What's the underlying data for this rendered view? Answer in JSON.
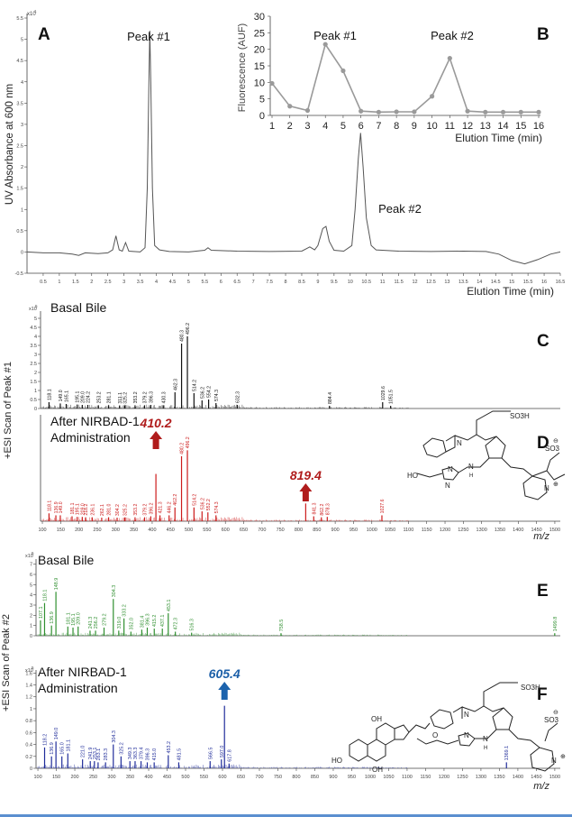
{
  "colors": {
    "trace": "#555555",
    "inset": "#9a9a9a",
    "c": "#111111",
    "d": "#cc1a1a",
    "e": "#2f8f2f",
    "f": "#1f2c9a",
    "red_arrow": "#b01c1c",
    "blue_arrow": "#1c63ad",
    "bottom_rule": "#5b8fd0",
    "blue_label": "#1b5fa8"
  },
  "chart_data": [
    {
      "type": "line",
      "panel": "A",
      "ylabel": "UV Absorbance at 600 nm",
      "xlabel": "Elution Time (min)",
      "y_scale_mark": "x10",
      "y_scale_exp": "1",
      "xlim": [
        0,
        16.5
      ],
      "ylim": [
        -0.5,
        5.5
      ],
      "xticks": [
        "0.5",
        "1",
        "1.5",
        "2",
        "2.5",
        "3",
        "3.5",
        "4",
        "4.5",
        "5",
        "5.5",
        "6",
        "6.5",
        "7",
        "7.5",
        "8",
        "8.5",
        "9",
        "9.5",
        "10",
        "10.5",
        "11",
        "11.5",
        "12",
        "12.5",
        "13",
        "13.5",
        "14",
        "14.5",
        "15",
        "15.5",
        "16",
        "16.5"
      ],
      "yticks": [
        "-0.5",
        "0",
        "0.5",
        "1",
        "1.5",
        "2",
        "2.5",
        "3",
        "3.5",
        "4",
        "4.5",
        "5",
        "5.5"
      ],
      "peak_labels": [
        "Peak #1",
        "Peak #2"
      ],
      "points": [
        [
          0,
          0
        ],
        [
          0.5,
          -0.02
        ],
        [
          1,
          -0.02
        ],
        [
          1.4,
          -0.05
        ],
        [
          1.6,
          -0.08
        ],
        [
          1.8,
          -0.02
        ],
        [
          2.2,
          -0.04
        ],
        [
          2.5,
          -0.02
        ],
        [
          2.65,
          0.05
        ],
        [
          2.75,
          0.38
        ],
        [
          2.85,
          0.05
        ],
        [
          2.95,
          0.02
        ],
        [
          3.05,
          0.22
        ],
        [
          3.15,
          0.02
        ],
        [
          3.5,
          0.0
        ],
        [
          3.65,
          0.1
        ],
        [
          3.72,
          1.5
        ],
        [
          3.77,
          4.0
        ],
        [
          3.8,
          5.2
        ],
        [
          3.83,
          4.0
        ],
        [
          3.88,
          1.5
        ],
        [
          3.95,
          0.15
        ],
        [
          4.1,
          0.05
        ],
        [
          4.4,
          0.01
        ],
        [
          5,
          0.0
        ],
        [
          5.5,
          0.04
        ],
        [
          5.6,
          0.1
        ],
        [
          5.7,
          0.04
        ],
        [
          6.5,
          0.02
        ],
        [
          7.5,
          0.01
        ],
        [
          8.5,
          0.02
        ],
        [
          8.75,
          0.12
        ],
        [
          8.9,
          0.05
        ],
        [
          9.0,
          0.15
        ],
        [
          9.15,
          0.55
        ],
        [
          9.25,
          0.6
        ],
        [
          9.35,
          0.25
        ],
        [
          9.5,
          0.04
        ],
        [
          9.8,
          0.02
        ],
        [
          10.05,
          0.15
        ],
        [
          10.15,
          1.0
        ],
        [
          10.25,
          2.2
        ],
        [
          10.32,
          2.8
        ],
        [
          10.4,
          2.0
        ],
        [
          10.5,
          0.8
        ],
        [
          10.65,
          0.15
        ],
        [
          10.8,
          0.05
        ],
        [
          11.5,
          0.02
        ],
        [
          12.5,
          0.01
        ],
        [
          13.5,
          0.02
        ],
        [
          14.2,
          0.01
        ],
        [
          14.6,
          -0.05
        ],
        [
          15.0,
          -0.2
        ],
        [
          15.4,
          -0.28
        ],
        [
          15.8,
          -0.18
        ],
        [
          16.2,
          -0.05
        ],
        [
          16.5,
          0.0
        ]
      ]
    },
    {
      "type": "line",
      "panel": "B",
      "ylabel": "Fluorescence (AUF)",
      "xlabel": "Elution Time (min)",
      "x": [
        1,
        2,
        3,
        4,
        5,
        6,
        7,
        8,
        9,
        10,
        11,
        12,
        13,
        14,
        15,
        16
      ],
      "y": [
        9.7,
        2.8,
        1.5,
        21.5,
        13.5,
        1.3,
        1.0,
        1.1,
        1.1,
        5.8,
        17.3,
        1.3,
        1.0,
        1.0,
        1.0,
        1.0
      ],
      "xlim": [
        1,
        16
      ],
      "ylim": [
        0,
        30
      ],
      "yticks": [
        "0",
        "5",
        "10",
        "15",
        "20",
        "25",
        "30"
      ],
      "peak_labels": [
        "Peak #1",
        "Peak #2"
      ]
    },
    {
      "type": "bar",
      "panel": "C",
      "title": "Basal Bile",
      "y_scale_mark": "x10",
      "y_scale_exp": "5",
      "xlim": [
        95,
        1510
      ],
      "ylim": [
        0,
        5.4
      ],
      "yticks": [
        "0",
        "0.5",
        "1",
        "1.5",
        "2",
        "2.5",
        "3",
        "3.5",
        "4",
        "4.5",
        "5"
      ],
      "peaks": [
        {
          "mz": 118.1,
          "v": 0.35,
          "label": "118.1"
        },
        {
          "mz": 149.0,
          "v": 0.28,
          "label": "149.0"
        },
        {
          "mz": 165.1,
          "v": 0.25,
          "label": "165.1"
        },
        {
          "mz": 195.1,
          "v": 0.22,
          "label": "195.1"
        },
        {
          "mz": 209.0,
          "v": 0.2,
          "label": "209.0"
        },
        {
          "mz": 224.2,
          "v": 0.2,
          "label": "224.2"
        },
        {
          "mz": 253.2,
          "v": 0.18,
          "label": "253.2"
        },
        {
          "mz": 281.1,
          "v": 0.18,
          "label": "281.1"
        },
        {
          "mz": 311.1,
          "v": 0.17,
          "label": "311.1"
        },
        {
          "mz": 325.2,
          "v": 0.16,
          "label": "325.2"
        },
        {
          "mz": 353.2,
          "v": 0.18,
          "label": "353.2"
        },
        {
          "mz": 379.2,
          "v": 0.18,
          "label": "379.2"
        },
        {
          "mz": 396.3,
          "v": 0.2,
          "label": "396.3"
        },
        {
          "mz": 430.3,
          "v": 0.18,
          "label": "430.3"
        },
        {
          "mz": 462.3,
          "v": 0.9,
          "label": "462.3"
        },
        {
          "mz": 480.3,
          "v": 3.6,
          "label": "480.3"
        },
        {
          "mz": 496.2,
          "v": 4.0,
          "label": "496.2"
        },
        {
          "mz": 514.2,
          "v": 0.85,
          "label": "514.2"
        },
        {
          "mz": 536.2,
          "v": 0.45,
          "label": "536.2"
        },
        {
          "mz": 554.2,
          "v": 0.5,
          "label": "554.2"
        },
        {
          "mz": 574.3,
          "v": 0.3,
          "label": "574.3"
        },
        {
          "mz": 632.3,
          "v": 0.2,
          "label": "632.3"
        },
        {
          "mz": 884.4,
          "v": 0.15,
          "label": "884.4"
        },
        {
          "mz": 1029.6,
          "v": 0.35,
          "label": "1029.6"
        },
        {
          "mz": 1051.5,
          "v": 0.15,
          "label": "1051.5"
        }
      ]
    },
    {
      "type": "bar",
      "panel": "D",
      "title_line1": "After NIRBAD-1",
      "title_line2": "Administration",
      "xlabel": "m/z",
      "xlim": [
        95,
        1510
      ],
      "ylim": [
        0,
        5.4
      ],
      "xticks": [
        "100",
        "150",
        "200",
        "250",
        "300",
        "350",
        "400",
        "450",
        "500",
        "550",
        "600",
        "650",
        "700",
        "750",
        "800",
        "850",
        "900",
        "950",
        "1000",
        "1050",
        "1100",
        "1150",
        "1200",
        "1250",
        "1300",
        "1350",
        "1400",
        "1450",
        "1500"
      ],
      "arrow_labels": [
        "410.2",
        "819.4"
      ],
      "peaks": [
        {
          "mz": 118.1,
          "v": 0.4,
          "label": "118.1"
        },
        {
          "mz": 136.9,
          "v": 0.3,
          "label": "136.9"
        },
        {
          "mz": 149.0,
          "v": 0.3,
          "label": "149.0"
        },
        {
          "mz": 181.1,
          "v": 0.25,
          "label": "181.1"
        },
        {
          "mz": 195.1,
          "v": 0.22,
          "label": "195.1"
        },
        {
          "mz": 209.0,
          "v": 0.22,
          "label": "209.0"
        },
        {
          "mz": 218.2,
          "v": 0.2,
          "label": "218.2"
        },
        {
          "mz": 236.1,
          "v": 0.2,
          "label": "236.1"
        },
        {
          "mz": 262.1,
          "v": 0.18,
          "label": "262.1"
        },
        {
          "mz": 281.0,
          "v": 0.2,
          "label": "281.0"
        },
        {
          "mz": 304.2,
          "v": 0.18,
          "label": "304.2"
        },
        {
          "mz": 325.2,
          "v": 0.18,
          "label": "325.2"
        },
        {
          "mz": 353.2,
          "v": 0.2,
          "label": "353.2"
        },
        {
          "mz": 379.2,
          "v": 0.2,
          "label": "379.2"
        },
        {
          "mz": 396.2,
          "v": 0.25,
          "label": "396.2"
        },
        {
          "mz": 410.2,
          "v": 2.4,
          "label": ""
        },
        {
          "mz": 421.3,
          "v": 0.3,
          "label": "421.3"
        },
        {
          "mz": 446.2,
          "v": 0.3,
          "label": "446.2"
        },
        {
          "mz": 462.2,
          "v": 0.7,
          "label": "462.2"
        },
        {
          "mz": 480.2,
          "v": 3.3,
          "label": "480.2"
        },
        {
          "mz": 496.2,
          "v": 3.6,
          "label": "496.2"
        },
        {
          "mz": 514.2,
          "v": 0.7,
          "label": "514.2"
        },
        {
          "mz": 536.2,
          "v": 0.5,
          "label": "536.2"
        },
        {
          "mz": 552.2,
          "v": 0.45,
          "label": "552.2"
        },
        {
          "mz": 574.3,
          "v": 0.3,
          "label": "574.3"
        },
        {
          "mz": 819.4,
          "v": 0.9,
          "label": ""
        },
        {
          "mz": 841.3,
          "v": 0.25,
          "label": "841.3"
        },
        {
          "mz": 862.2,
          "v": 0.2,
          "label": "862.2"
        },
        {
          "mz": 878.3,
          "v": 0.22,
          "label": "878.3"
        },
        {
          "mz": 1027.6,
          "v": 0.3,
          "label": "1027.6"
        }
      ]
    },
    {
      "type": "bar",
      "panel": "E",
      "title": "Basal Bile",
      "y_scale_mark": "x10",
      "y_scale_exp": "5",
      "xlim": [
        95,
        1510
      ],
      "ylim": [
        0,
        7.5
      ],
      "yticks": [
        "0",
        "1",
        "2",
        "3",
        "4",
        "5",
        "6",
        "7"
      ],
      "peaks": [
        {
          "mz": 107.1,
          "v": 1.5,
          "label": "107.1"
        },
        {
          "mz": 118.1,
          "v": 3.2,
          "label": "118.1"
        },
        {
          "mz": 136.9,
          "v": 1.0,
          "label": "136.9"
        },
        {
          "mz": 148.9,
          "v": 4.3,
          "label": "148.9"
        },
        {
          "mz": 181.1,
          "v": 0.9,
          "label": "181.1"
        },
        {
          "mz": 195.1,
          "v": 0.8,
          "label": "195.1"
        },
        {
          "mz": 209.0,
          "v": 0.9,
          "label": "209.0"
        },
        {
          "mz": 241.3,
          "v": 0.5,
          "label": "241.3"
        },
        {
          "mz": 256.2,
          "v": 0.5,
          "label": "256.2"
        },
        {
          "mz": 279.2,
          "v": 0.8,
          "label": "279.2"
        },
        {
          "mz": 304.3,
          "v": 3.6,
          "label": "304.3"
        },
        {
          "mz": 319.0,
          "v": 0.5,
          "label": "319.0"
        },
        {
          "mz": 333.2,
          "v": 1.7,
          "label": "333.2"
        },
        {
          "mz": 352.0,
          "v": 0.4,
          "label": "352.0"
        },
        {
          "mz": 381.4,
          "v": 0.6,
          "label": "381.4"
        },
        {
          "mz": 396.3,
          "v": 0.8,
          "label": "396.3"
        },
        {
          "mz": 415.2,
          "v": 0.7,
          "label": "415.2"
        },
        {
          "mz": 437.1,
          "v": 0.7,
          "label": "437.1"
        },
        {
          "mz": 453.1,
          "v": 2.2,
          "label": "453.1"
        },
        {
          "mz": 472.3,
          "v": 0.4,
          "label": "472.3"
        },
        {
          "mz": 516.3,
          "v": 0.3,
          "label": "516.3"
        },
        {
          "mz": 758.5,
          "v": 0.25,
          "label": "758.5"
        },
        {
          "mz": 1499.8,
          "v": 0.25,
          "label": "1499.8"
        }
      ]
    },
    {
      "type": "bar",
      "panel": "F",
      "title_line1": "After NIRBAD-1",
      "title_line2": "Administration",
      "xlabel": "m/z",
      "y_scale_mark": "x10",
      "y_scale_exp": "5",
      "xlim": [
        95,
        1510
      ],
      "ylim": [
        0,
        1.65
      ],
      "xticks": [
        "100",
        "150",
        "200",
        "250",
        "300",
        "350",
        "400",
        "450",
        "500",
        "550",
        "600",
        "650",
        "700",
        "750",
        "800",
        "850",
        "900",
        "950",
        "1000",
        "1050",
        "1100",
        "1150",
        "1200",
        "1250",
        "1300",
        "1350",
        "1400",
        "1450",
        "1500"
      ],
      "yticks": [
        "0",
        "0.2",
        "0.4",
        "0.6",
        "0.8",
        "1",
        "1.2",
        "1.4",
        "1.6"
      ],
      "arrow_labels": [
        "605.4"
      ],
      "peaks": [
        {
          "mz": 118.2,
          "v": 0.35,
          "label": "118.2"
        },
        {
          "mz": 136.9,
          "v": 0.2,
          "label": "136.9"
        },
        {
          "mz": 149.0,
          "v": 0.45,
          "label": "149.0"
        },
        {
          "mz": 165.0,
          "v": 0.2,
          "label": "165.0"
        },
        {
          "mz": 181.1,
          "v": 0.25,
          "label": "181.1"
        },
        {
          "mz": 221.0,
          "v": 0.15,
          "label": "221.0"
        },
        {
          "mz": 241.9,
          "v": 0.12,
          "label": "241.9"
        },
        {
          "mz": 253.1,
          "v": 0.12,
          "label": "253.1"
        },
        {
          "mz": 263.1,
          "v": 0.1,
          "label": "263.1"
        },
        {
          "mz": 283.3,
          "v": 0.1,
          "label": "283.3"
        },
        {
          "mz": 304.3,
          "v": 0.4,
          "label": "304.3"
        },
        {
          "mz": 325.2,
          "v": 0.2,
          "label": "325.2"
        },
        {
          "mz": 349.3,
          "v": 0.12,
          "label": "349.3"
        },
        {
          "mz": 363.3,
          "v": 0.12,
          "label": "363.3"
        },
        {
          "mz": 379.4,
          "v": 0.12,
          "label": "379.4"
        },
        {
          "mz": 396.3,
          "v": 0.1,
          "label": "396.3"
        },
        {
          "mz": 415.0,
          "v": 0.1,
          "label": "415.0"
        },
        {
          "mz": 453.2,
          "v": 0.22,
          "label": "453.2"
        },
        {
          "mz": 481.5,
          "v": 0.1,
          "label": "481.5"
        },
        {
          "mz": 566.5,
          "v": 0.12,
          "label": "566.5"
        },
        {
          "mz": 597.0,
          "v": 0.15,
          "label": "597.0"
        },
        {
          "mz": 605.4,
          "v": 1.05,
          "label": ""
        },
        {
          "mz": 617.8,
          "v": 0.08,
          "label": "617.8"
        },
        {
          "mz": 1369.1,
          "v": 0.1,
          "label": "1369.1"
        }
      ]
    }
  ],
  "labels": {
    "panel_a": "A",
    "panel_b": "B",
    "panel_c": "C",
    "panel_d": "D",
    "panel_e": "E",
    "panel_f": "F",
    "esi_1": "+ESI Scan of Peak #1",
    "esi_2": "+ESI Scan of Peak #2"
  },
  "structures": {
    "sulfonate_top": "SO3H",
    "sulfonate_minus": "SO3",
    "minus": "⊖",
    "plus": "⊕",
    "n": "N",
    "h": "H",
    "o": "O",
    "ho": "HO",
    "oh": "OH"
  }
}
